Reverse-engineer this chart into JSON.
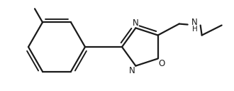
{
  "bg_color": "#ffffff",
  "line_color": "#1a1a1a",
  "line_width": 1.6,
  "font_size": 8.5,
  "canvas_xlim": [
    0,
    330
  ],
  "canvas_ylim": [
    0,
    128
  ]
}
